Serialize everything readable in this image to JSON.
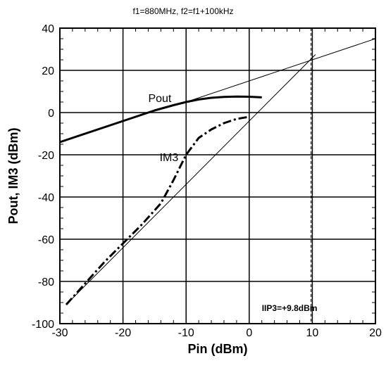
{
  "chart_data": {
    "type": "line",
    "title": "f1=880MHz, f2=f1+100kHz",
    "xlabel": "Pin (dBm)",
    "ylabel": "Pout, IM3 (dBm)",
    "xlim": [
      -30,
      20
    ],
    "ylim": [
      -100,
      40
    ],
    "x_ticks": [
      -30,
      -20,
      -10,
      0,
      10,
      20
    ],
    "y_ticks": [
      -100,
      -80,
      -60,
      -40,
      -20,
      0,
      20,
      40
    ],
    "grid": true,
    "series": [
      {
        "name": "Pout",
        "style": "solid-thick",
        "x": [
          -30,
          -25,
          -20,
          -15,
          -12,
          -10,
          -8,
          -6,
          -4,
          -2,
          0,
          2
        ],
        "y": [
          -14,
          -9,
          -4,
          1,
          3.5,
          5,
          6.2,
          7,
          7.4,
          7.6,
          7.5,
          7.2
        ]
      },
      {
        "name": "IM3",
        "style": "dash-dot-thick",
        "x": [
          -29,
          -26,
          -23,
          -20,
          -17,
          -14,
          -12,
          -10,
          -8,
          -6,
          -4,
          -2,
          0
        ],
        "y": [
          -91,
          -81,
          -71,
          -62,
          -53,
          -43,
          -32,
          -20,
          -12,
          -8,
          -5,
          -3,
          -2
        ]
      },
      {
        "name": "Pout extrapolation",
        "style": "thin",
        "x": [
          -10,
          20
        ],
        "y": [
          5,
          35
        ]
      },
      {
        "name": "IM3 extrapolation",
        "style": "thin",
        "x": [
          -29,
          10.5
        ],
        "y": [
          -91,
          27.5
        ]
      }
    ],
    "vlines": [
      {
        "x": 9.8,
        "style": "dashed"
      },
      {
        "x": 10,
        "style": "solid"
      }
    ],
    "labels": [
      {
        "text": "Pout",
        "x": -16,
        "y": 5
      },
      {
        "text": "IM3",
        "x": -14.2,
        "y": -23
      }
    ],
    "annotation": {
      "text": "IIP3=+9.8dBm",
      "x": 2,
      "y": -94
    }
  }
}
